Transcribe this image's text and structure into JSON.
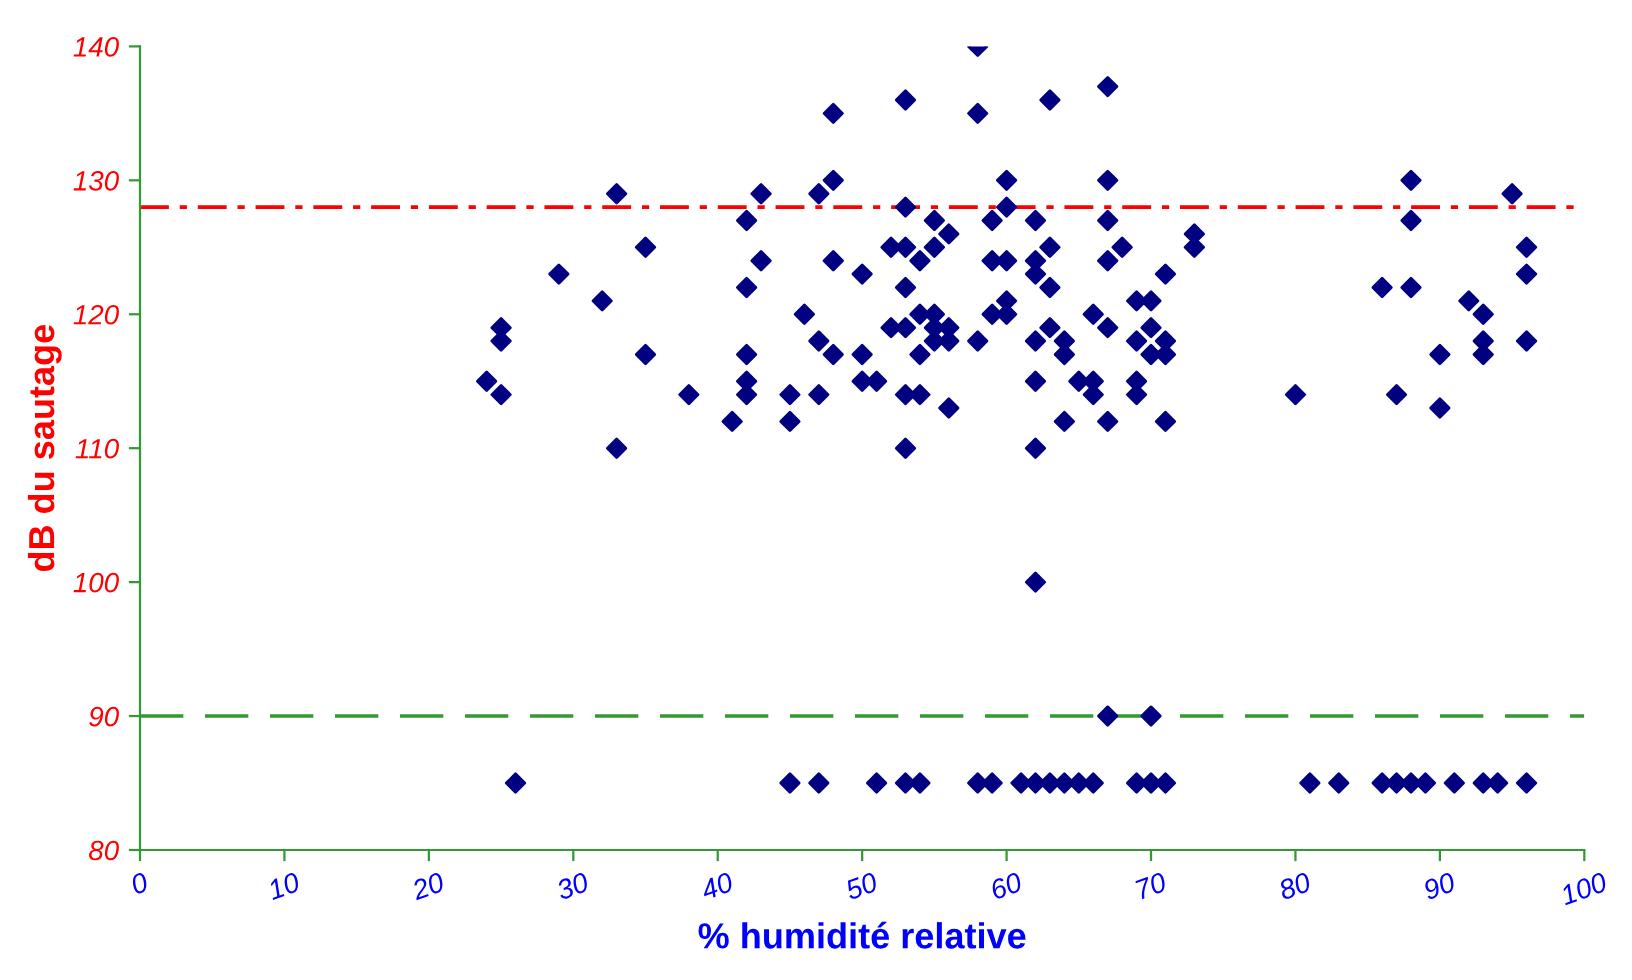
{
  "chart_data": {
    "type": "scatter",
    "xlabel": "% humidité relative",
    "ylabel": "dB du sautage",
    "xlim": [
      0,
      100
    ],
    "xticks": [
      0,
      10,
      20,
      30,
      40,
      50,
      60,
      70,
      80,
      90,
      100
    ],
    "ylim": [
      80,
      140
    ],
    "yticks": [
      80,
      90,
      100,
      110,
      120,
      130,
      140
    ],
    "grid": false,
    "legend": false,
    "marker": "diamond",
    "ref_lines": [
      {
        "axis": "y",
        "value": 128,
        "label": null,
        "color": "#ff0000",
        "line_style": "dashdot"
      },
      {
        "axis": "y",
        "value": 90,
        "label": null,
        "color": "#339933",
        "line_style": "dashed"
      }
    ],
    "series": [
      {
        "color": "#000080",
        "x": [
          24,
          25,
          25,
          25,
          26,
          29,
          32,
          33,
          33,
          35,
          35,
          38,
          41,
          42,
          42,
          42,
          42,
          42,
          43,
          43,
          45,
          45,
          45,
          46,
          47,
          47,
          47,
          47,
          48,
          48,
          48,
          48,
          50,
          50,
          50,
          51,
          51,
          52,
          52,
          53,
          53,
          53,
          53,
          53,
          53,
          53,
          53,
          54,
          54,
          54,
          54,
          54,
          55,
          55,
          55,
          55,
          55,
          56,
          56,
          56,
          56,
          58,
          58,
          58,
          58,
          59,
          59,
          59,
          59,
          60,
          60,
          60,
          60,
          60,
          61,
          62,
          62,
          62,
          62,
          62,
          62,
          62,
          62,
          63,
          63,
          63,
          63,
          63,
          64,
          64,
          64,
          64,
          65,
          65,
          66,
          66,
          66,
          66,
          67,
          67,
          67,
          67,
          67,
          67,
          67,
          68,
          69,
          69,
          69,
          69,
          69,
          70,
          70,
          70,
          70,
          70,
          71,
          71,
          71,
          71,
          71,
          73,
          73,
          80,
          81,
          83,
          86,
          86,
          87,
          87,
          88,
          88,
          88,
          88,
          89,
          90,
          90,
          91,
          92,
          93,
          93,
          93,
          93,
          94,
          95,
          96,
          96,
          96,
          96
        ],
        "values": [
          115,
          119,
          118,
          114,
          85,
          123,
          121,
          129,
          110,
          125,
          117,
          114,
          112,
          127,
          122,
          117,
          115,
          114,
          129,
          124,
          114,
          112,
          85,
          120,
          129,
          118,
          114,
          85,
          135,
          130,
          124,
          117,
          123,
          117,
          115,
          115,
          85,
          125,
          119,
          136,
          128,
          125,
          122,
          119,
          114,
          110,
          85,
          124,
          120,
          117,
          114,
          85,
          127,
          125,
          120,
          119,
          118,
          126,
          119,
          118,
          113,
          140,
          135,
          118,
          85,
          127,
          124,
          120,
          85,
          130,
          128,
          124,
          121,
          120,
          85,
          127,
          124,
          123,
          118,
          115,
          110,
          100,
          85,
          136,
          125,
          122,
          119,
          85,
          118,
          117,
          112,
          85,
          115,
          85,
          120,
          115,
          114,
          85,
          137,
          130,
          127,
          124,
          119,
          112,
          90,
          125,
          121,
          118,
          115,
          114,
          85,
          121,
          119,
          117,
          90,
          85,
          123,
          118,
          117,
          112,
          85,
          126,
          125,
          114,
          85,
          85,
          122,
          85,
          114,
          85,
          130,
          127,
          122,
          85,
          85,
          117,
          113,
          85,
          121,
          120,
          118,
          117,
          85,
          85,
          129,
          125,
          123,
          118,
          85
        ]
      }
    ]
  }
}
